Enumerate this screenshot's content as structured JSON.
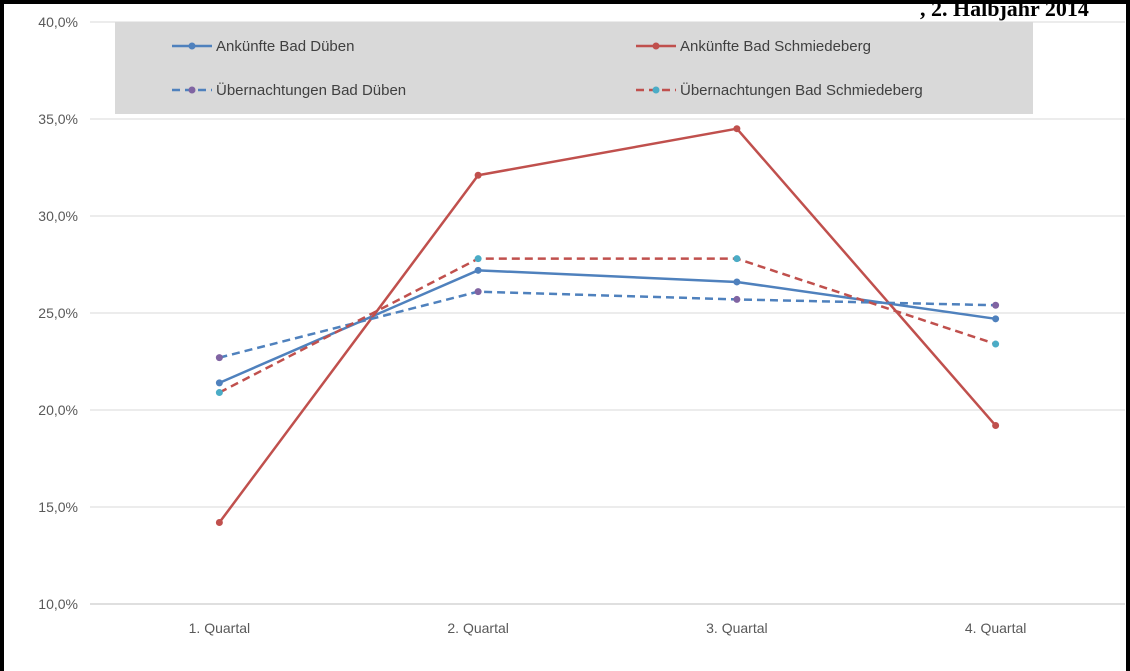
{
  "header": {
    "title_fragment": ", 2. Halbjahr 2014"
  },
  "chart_data": {
    "type": "line",
    "categories": [
      "1. Quartal",
      "2. Quartal",
      "3. Quartal",
      "4. Quartal"
    ],
    "ylim": [
      10,
      40
    ],
    "yticks": [
      10,
      15,
      20,
      25,
      30,
      35,
      40
    ],
    "ytick_labels": [
      "10,0%",
      "15,0%",
      "20,0%",
      "25,0%",
      "30,0%",
      "35,0%",
      "40,0%"
    ],
    "grid": true,
    "legend_position": "top",
    "series": [
      {
        "name": "Ankünfte Bad Düben",
        "values": [
          21.4,
          27.2,
          26.6,
          24.7
        ],
        "color": "#4f81bd",
        "dashed": false,
        "marker_color": "#4f81bd"
      },
      {
        "name": "Ankünfte Bad Schmiedeberg",
        "values": [
          14.2,
          32.1,
          34.5,
          19.2
        ],
        "color": "#c0504d",
        "dashed": false,
        "marker_color": "#c0504d"
      },
      {
        "name": "Übernachtungen Bad Düben",
        "values": [
          22.7,
          26.1,
          25.7,
          25.4
        ],
        "color": "#4f81bd",
        "dashed": true,
        "marker_color": "#8064a2"
      },
      {
        "name": "Übernachtungen Bad Schmiedeberg",
        "values": [
          20.9,
          27.8,
          27.8,
          23.4
        ],
        "color": "#c0504d",
        "dashed": true,
        "marker_color": "#4bacc6"
      }
    ]
  }
}
